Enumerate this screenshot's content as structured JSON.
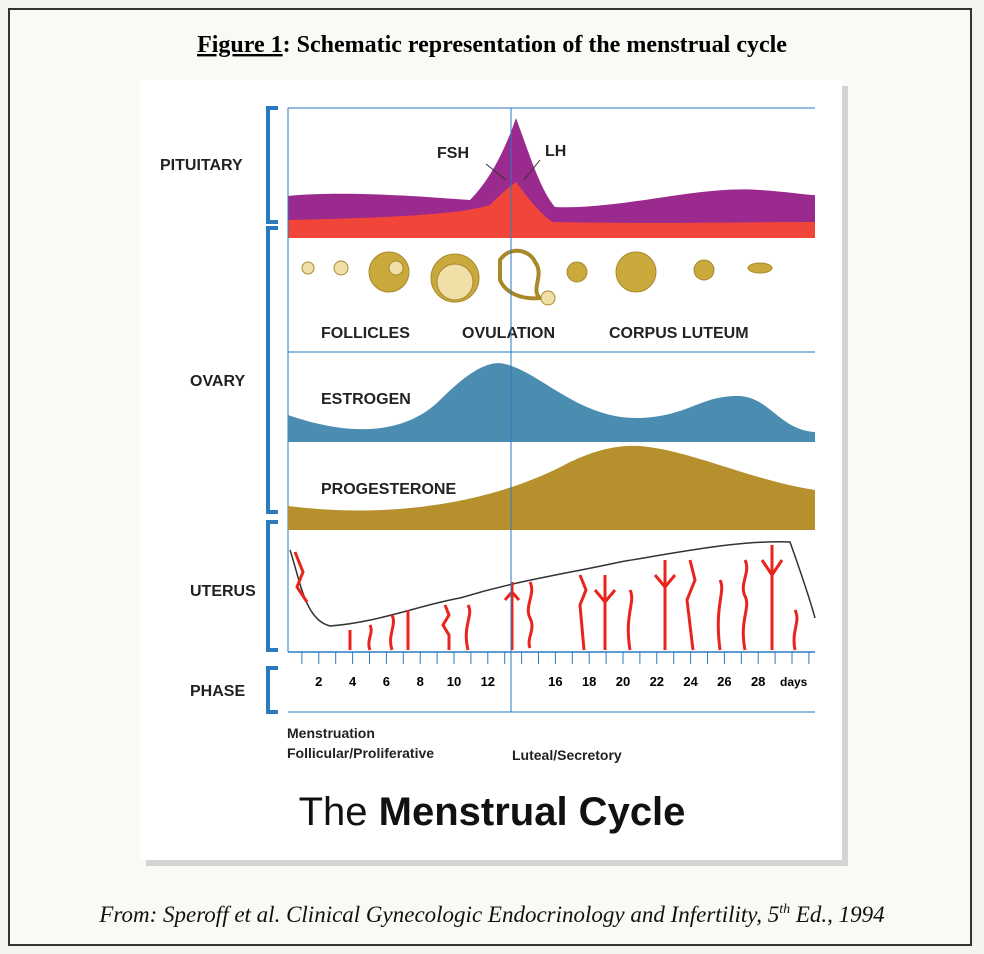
{
  "caption": {
    "label": "Figure 1",
    "text": ": Schematic representation of the menstrual cycle"
  },
  "sections": [
    "PITUITARY",
    "OVARY",
    "UTERUS",
    "PHASE"
  ],
  "labels": {
    "fsh": "FSH",
    "lh": "LH",
    "follicles": "FOLLICLES",
    "ovulation": "OVULATION",
    "corpus_luteum": "CORPUS LUTEUM",
    "estrogen": "ESTROGEN",
    "progesterone": "PROGESTERONE"
  },
  "days": [
    2,
    4,
    6,
    8,
    10,
    12,
    16,
    18,
    20,
    22,
    24,
    26,
    28
  ],
  "days_unit": "days",
  "phases": [
    "Menstruation",
    "Follicular/Proliferative",
    "Luteal/Secretory"
  ],
  "figure_title": {
    "plain": "The",
    "bold": "Menstrual Cycle"
  },
  "source": {
    "text": "From: Speroff et al. Clinical Gynecologic Endocrinology and Infertility, 5",
    "sup": "th",
    "rest": " Ed., 1994"
  }
}
